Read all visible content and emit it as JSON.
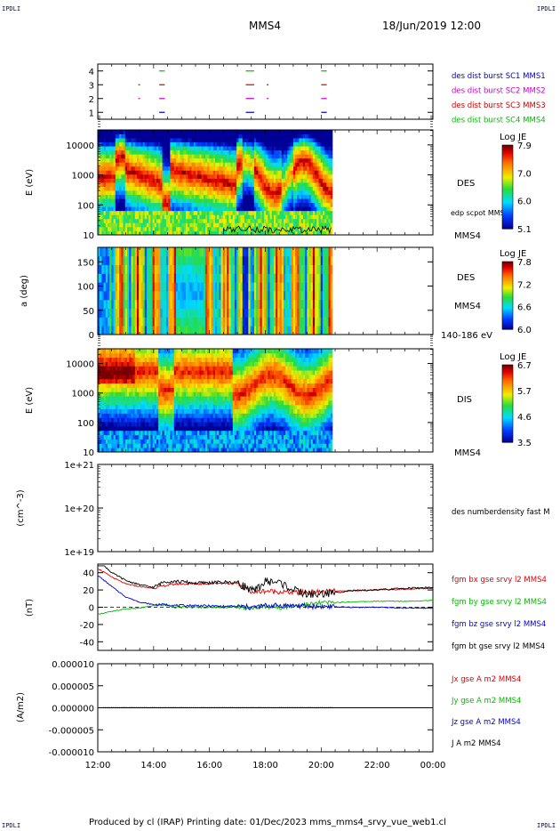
{
  "corners": {
    "tl": "IPDLI",
    "tr": "IPDLI",
    "bl": "IPDLI",
    "br": "IPDLI"
  },
  "header": {
    "spacecraft": "MMS4",
    "datetime": "18/Jun/2019 12:00"
  },
  "footer": {
    "text": "Produced by cl (IRAP)    Printing date: 01/Dec/2023    mms_mms4_srvy_vue_web1.cl"
  },
  "colors": {
    "sc1": "#0000cc",
    "sc2": "#cc00cc",
    "sc3": "#cc0000",
    "sc4": "#00bb00",
    "bx": "#dd0000",
    "by": "#00bb00",
    "bz": "#0000dd",
    "bt": "#000000"
  },
  "chart_data": [
    {
      "type": "scatter",
      "title": "",
      "ylim": [
        0.5,
        4.5
      ],
      "yticks": [
        "1",
        "2",
        "3",
        "4"
      ],
      "legend": [
        "des dist burst SC1 MMS1",
        "des dist burst SC2 MMS2",
        "des dist burst SC3 MMS3",
        "des dist burst SC4 MMS4"
      ],
      "series": [
        {
          "name": "des dist burst SC1 MMS1",
          "y": 1,
          "intervals": [
            [
              14.2,
              14.4
            ],
            [
              17.3,
              17.6
            ],
            [
              20.0,
              20.2
            ]
          ]
        },
        {
          "name": "des dist burst SC2 MMS2",
          "y": 2,
          "intervals": [
            [
              13.45,
              13.5
            ],
            [
              14.2,
              14.4
            ],
            [
              17.3,
              17.6
            ],
            [
              18.05,
              18.1
            ],
            [
              20.0,
              20.2
            ]
          ]
        },
        {
          "name": "des dist burst SC3 MMS3",
          "y": 3,
          "intervals": [
            [
              13.45,
              13.5
            ],
            [
              14.2,
              14.4
            ],
            [
              17.3,
              17.6
            ],
            [
              18.05,
              18.1
            ],
            [
              20.0,
              20.2
            ]
          ]
        },
        {
          "name": "des dist burst SC4 MMS4",
          "y": 4,
          "intervals": [
            [
              14.2,
              14.4
            ],
            [
              17.3,
              17.6
            ],
            [
              20.0,
              20.2
            ]
          ]
        }
      ]
    },
    {
      "type": "heatmap",
      "ylabel": "E (eV)",
      "yticks": [
        "10",
        "100",
        "1000",
        "10000"
      ],
      "label": "DES",
      "overlay": "edp scpot MMS4",
      "colorbar": {
        "title": "Log JE",
        "ticks": [
          "5.1",
          "6.0",
          "7.0",
          "7.9"
        ]
      },
      "time_range": [
        12.0,
        20.4
      ]
    },
    {
      "type": "heatmap",
      "ylabel": "a (deg)",
      "yticks": [
        "0",
        "50",
        "100",
        "150"
      ],
      "label": "DES",
      "sc": "MMS4",
      "energy_band": "140-186 eV",
      "colorbar": {
        "title": "Log JE",
        "ticks": [
          "6.0",
          "6.6",
          "7.2",
          "7.8"
        ]
      },
      "time_range": [
        12.0,
        20.4
      ]
    },
    {
      "type": "heatmap",
      "ylabel": "E (eV)",
      "yticks": [
        "10",
        "100",
        "1000",
        "10000"
      ],
      "label": "DIS",
      "sc": "MMS4",
      "colorbar": {
        "title": "Log JE",
        "ticks": [
          "3.5",
          "4.6",
          "5.7",
          "6.7"
        ]
      },
      "time_range": [
        12.0,
        20.4
      ]
    },
    {
      "type": "line",
      "ylabel": "(cm^-3)",
      "yticks": [
        "1e+19",
        "1e+20",
        "1e+21"
      ],
      "legend": [
        "des numberdensity fast M"
      ],
      "series": []
    },
    {
      "type": "line",
      "ylabel": "(nT)",
      "ylim": [
        -50,
        50
      ],
      "yticks": [
        "-40",
        "-20",
        "0",
        "20",
        "40"
      ],
      "legend": [
        "fgm bx gse srvy l2 MMS4",
        "fgm by gse srvy l2 MMS4",
        "fgm bz gse srvy l2 MMS4",
        "fgm bt gse srvy l2 MMS4"
      ],
      "x": [
        12.0,
        12.5,
        13.0,
        13.5,
        14.0,
        14.4,
        14.8,
        15.5,
        16.5,
        17.0,
        17.6,
        18.0,
        18.5,
        19.0,
        19.5,
        20.0,
        21.0,
        22.0,
        23.0,
        24.0
      ],
      "series": [
        {
          "name": "fgm bx gse srvy l2 MMS4",
          "values": [
            45,
            35,
            27,
            24,
            22,
            25,
            27,
            27,
            28,
            27,
            17,
            19,
            18,
            17,
            17,
            18,
            19,
            20,
            21,
            22
          ]
        },
        {
          "name": "fgm by gse srvy l2 MMS4",
          "values": [
            -8,
            -5,
            -2,
            -1,
            2,
            3,
            0,
            0,
            0,
            0,
            -1,
            1,
            0,
            2,
            3,
            5,
            6,
            7,
            7,
            8
          ]
        },
        {
          "name": "fgm bz gse srvy l2 MMS4",
          "values": [
            37,
            24,
            12,
            6,
            3,
            3,
            2,
            2,
            1,
            1,
            0,
            2,
            2,
            2,
            1,
            1,
            0,
            0,
            -1,
            -1
          ]
        },
        {
          "name": "fgm bt gse srvy l2 MMS4",
          "values": [
            55,
            40,
            31,
            26,
            23,
            30,
            30,
            28,
            29,
            29,
            18,
            30,
            29,
            20,
            15,
            15,
            19,
            20,
            22,
            23
          ]
        }
      ]
    },
    {
      "type": "line",
      "ylabel": "(A/m2)",
      "ylim": [
        -1e-05,
        1e-05
      ],
      "yticks": [
        "-0.000010",
        "-0.000005",
        "0.000000",
        "0.000005",
        "0.000010"
      ],
      "legend": [
        "Jx gse A m2 MMS4",
        "Jy gse A m2 MMS4",
        "Jz gse A m2 MMS4",
        "J A m2 MMS4"
      ],
      "xticks": [
        "12:00",
        "14:00",
        "16:00",
        "18:00",
        "20:00",
        "22:00",
        "00:00"
      ],
      "xlim": [
        12,
        24
      ],
      "series": [
        {
          "name": "J A m2 MMS4",
          "values": [
            0,
            0,
            0,
            0,
            0,
            0,
            0
          ]
        }
      ]
    }
  ]
}
